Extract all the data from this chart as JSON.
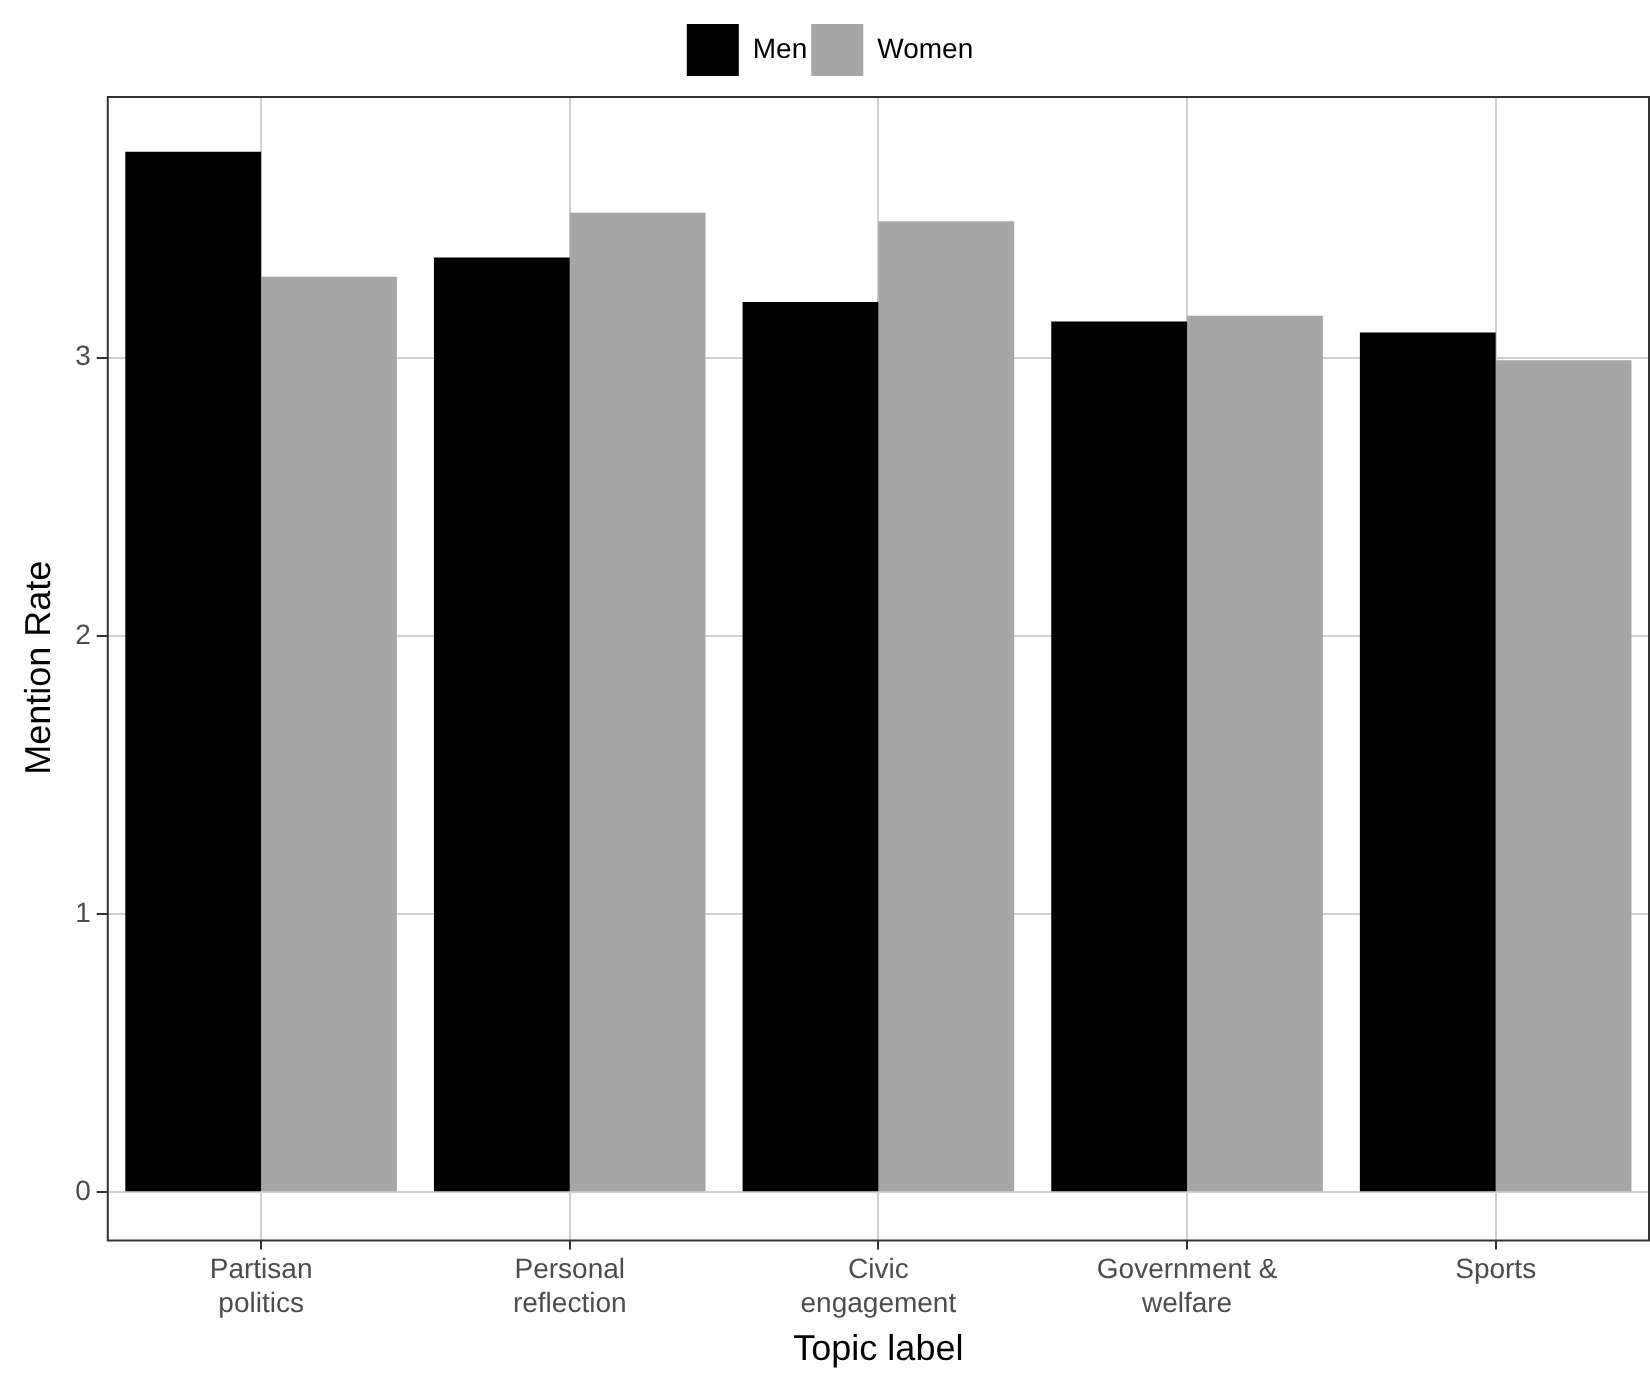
{
  "chart_data": {
    "type": "bar",
    "xlabel": "Topic label",
    "ylabel": "Mention Rate",
    "categories": [
      "Partisan politics",
      "Personal reflection",
      "Civic engagement",
      "Government & welfare",
      "Sports"
    ],
    "series": [
      {
        "name": "Men",
        "color": "#000000",
        "values": [
          3.74,
          3.36,
          3.2,
          3.13,
          3.09
        ]
      },
      {
        "name": "Women",
        "color": "#a6a6a6",
        "values": [
          3.29,
          3.52,
          3.49,
          3.15,
          2.99
        ]
      }
    ],
    "ylim": [
      -0.17,
      3.94
    ],
    "yticks": [
      0,
      1,
      2,
      3
    ],
    "grid": true,
    "legend": "top"
  }
}
